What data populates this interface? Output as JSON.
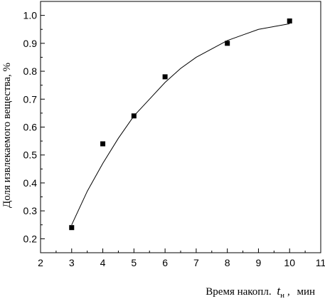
{
  "chart_data": {
    "type": "scatter",
    "title": "",
    "xlabel_prefix": "Время накопл.",
    "xlabel_var": "t",
    "xlabel_sub": "н",
    "xlabel_unit": "мин",
    "ylabel": "Доля извлекаемого вещества, %",
    "xlim": [
      2,
      11
    ],
    "ylim": [
      0.15,
      1.05
    ],
    "xticks": [
      "2",
      "3",
      "4",
      "5",
      "6",
      "7",
      "8",
      "9",
      "10",
      "11"
    ],
    "yticks": [
      "0.2",
      "0.3",
      "0.4",
      "0.5",
      "0.6",
      "0.7",
      "0.8",
      "0.9",
      "1.0"
    ],
    "grid": false,
    "legend": "none",
    "series": [
      {
        "marker": "square",
        "points": [
          {
            "x": 3,
            "y": 0.24
          },
          {
            "x": 4,
            "y": 0.54
          },
          {
            "x": 5,
            "y": 0.64
          },
          {
            "x": 6,
            "y": 0.78
          },
          {
            "x": 8,
            "y": 0.9
          },
          {
            "x": 10,
            "y": 0.98
          }
        ]
      }
    ],
    "fit_curve": [
      {
        "x": 3.0,
        "y": 0.25
      },
      {
        "x": 3.5,
        "y": 0.37
      },
      {
        "x": 4.0,
        "y": 0.47
      },
      {
        "x": 4.5,
        "y": 0.56
      },
      {
        "x": 5.0,
        "y": 0.64
      },
      {
        "x": 5.5,
        "y": 0.7
      },
      {
        "x": 6.0,
        "y": 0.76
      },
      {
        "x": 6.5,
        "y": 0.81
      },
      {
        "x": 7.0,
        "y": 0.85
      },
      {
        "x": 7.5,
        "y": 0.88
      },
      {
        "x": 8.0,
        "y": 0.91
      },
      {
        "x": 8.5,
        "y": 0.93
      },
      {
        "x": 9.0,
        "y": 0.95
      },
      {
        "x": 9.5,
        "y": 0.96
      },
      {
        "x": 10.0,
        "y": 0.97
      }
    ],
    "colors": {
      "marker": "#000000",
      "curve": "#000000",
      "axis": "#000000"
    }
  }
}
